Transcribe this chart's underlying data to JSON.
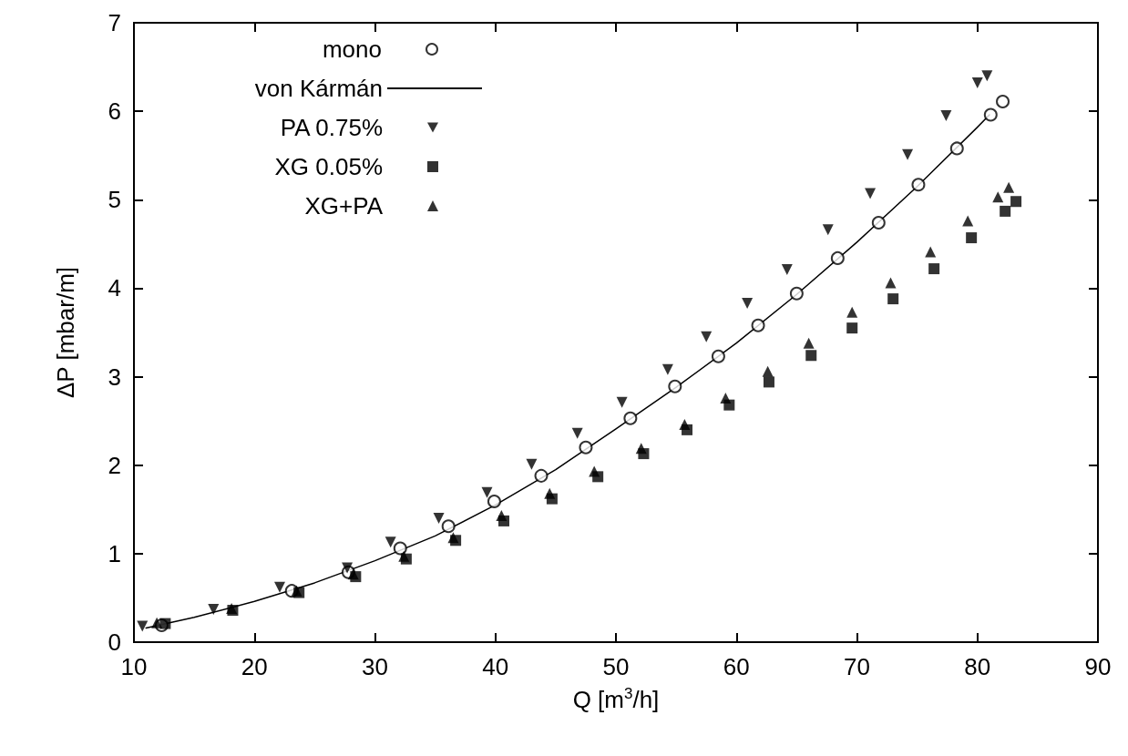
{
  "chart_data": {
    "type": "scatter",
    "xlabel": "Q [m$^{3}$/h]",
    "ylabel": "ΔP [mbar/m]",
    "xlim": [
      10,
      90
    ],
    "xticks": [
      10,
      20,
      30,
      40,
      50,
      60,
      70,
      80,
      90
    ],
    "ylim": [
      0,
      7
    ],
    "yticks": [
      0,
      1,
      2,
      3,
      4,
      5,
      6,
      7
    ],
    "grid": false,
    "legend": "top left",
    "series": [
      {
        "name": "mono",
        "marker": "circle",
        "color": "#000000",
        "x": [
          12.3,
          23.1,
          27.8,
          32.1,
          36.1,
          39.9,
          43.8,
          47.5,
          51.2,
          54.9,
          58.5,
          61.8,
          65.0,
          68.4,
          71.8,
          75.1,
          78.3,
          81.1,
          82.1
        ],
        "values": [
          0.19,
          0.58,
          0.79,
          1.06,
          1.31,
          1.59,
          1.88,
          2.2,
          2.53,
          2.89,
          3.23,
          3.58,
          3.94,
          4.34,
          4.74,
          5.17,
          5.58,
          5.96,
          6.11
        ]
      },
      {
        "name": "von Kármán",
        "type": "line",
        "marker": "none",
        "line_style": "solid",
        "color": "#000000",
        "x": [
          11,
          15,
          20,
          25,
          30,
          35,
          40,
          45,
          50,
          55,
          60,
          65,
          70,
          75,
          80,
          81
        ],
        "values": [
          0.16,
          0.28,
          0.46,
          0.67,
          0.92,
          1.2,
          1.55,
          1.95,
          2.41,
          2.88,
          3.38,
          3.93,
          4.52,
          5.15,
          5.82,
          5.96
        ]
      },
      {
        "name": "PA 0.75%",
        "marker": "triangle-down",
        "color": "#000000",
        "x": [
          10.7,
          16.6,
          22.1,
          27.7,
          31.3,
          35.3,
          39.3,
          43.0,
          46.8,
          50.5,
          54.3,
          57.5,
          60.9,
          64.2,
          67.6,
          71.1,
          74.2,
          77.4,
          80.0,
          80.8
        ],
        "values": [
          0.18,
          0.37,
          0.62,
          0.84,
          1.13,
          1.4,
          1.69,
          2.01,
          2.36,
          2.71,
          3.08,
          3.45,
          3.83,
          4.21,
          4.66,
          5.07,
          5.51,
          5.95,
          6.32,
          6.4
        ]
      },
      {
        "name": "XG 0.05%",
        "marker": "square",
        "color": "#000000",
        "x": [
          12.6,
          18.2,
          23.7,
          28.4,
          32.6,
          36.7,
          40.7,
          44.7,
          48.5,
          52.3,
          55.9,
          59.4,
          62.7,
          66.2,
          69.6,
          73.0,
          76.4,
          79.5,
          82.3,
          83.2
        ],
        "values": [
          0.21,
          0.36,
          0.56,
          0.74,
          0.94,
          1.15,
          1.37,
          1.62,
          1.87,
          2.13,
          2.4,
          2.68,
          2.94,
          3.24,
          3.55,
          3.88,
          4.22,
          4.57,
          4.87,
          4.98
        ]
      },
      {
        "name": "XG+PA",
        "marker": "triangle",
        "color": "#000000",
        "x": [
          11.9,
          18.1,
          23.5,
          28.2,
          32.4,
          36.5,
          40.5,
          44.5,
          48.2,
          52.1,
          55.7,
          59.1,
          62.6,
          66.0,
          69.6,
          72.8,
          76.1,
          79.2,
          81.7,
          82.6
        ],
        "values": [
          0.22,
          0.38,
          0.58,
          0.77,
          0.97,
          1.18,
          1.43,
          1.68,
          1.93,
          2.19,
          2.46,
          2.76,
          3.06,
          3.38,
          3.73,
          4.06,
          4.41,
          4.76,
          5.03,
          5.14
        ]
      }
    ]
  }
}
